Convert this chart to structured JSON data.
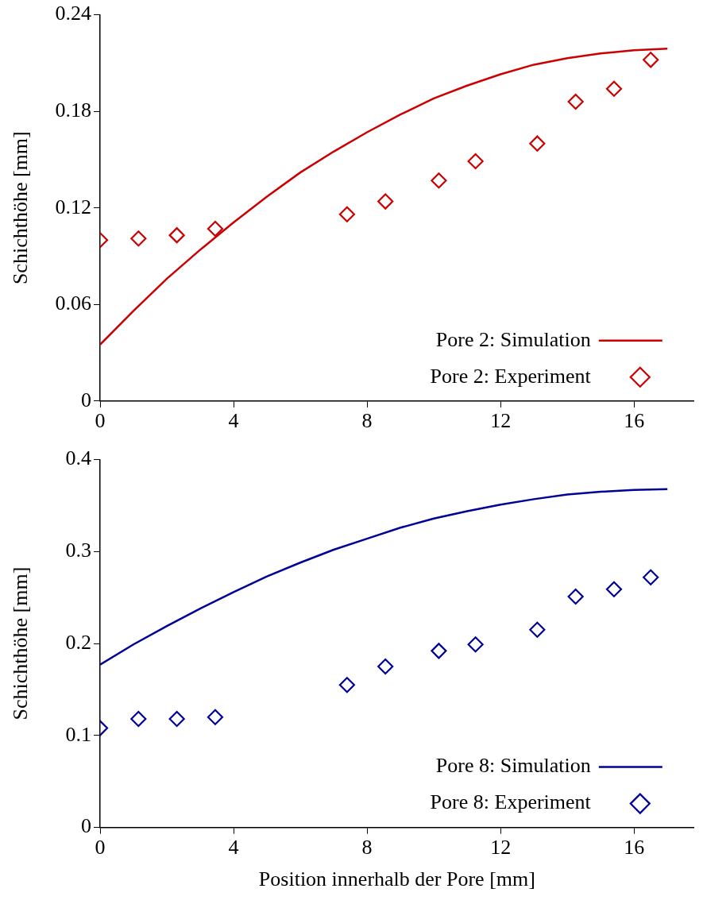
{
  "chart_data": [
    {
      "type": "line",
      "ylabel": "Schichthöhe [mm]",
      "xlim": [
        0,
        17.8
      ],
      "xticks": [
        0,
        4,
        8,
        12,
        16
      ],
      "ylim": [
        0,
        0.24
      ],
      "yticks": [
        0,
        0.06,
        0.12,
        0.18,
        0.24
      ],
      "grid": false,
      "legend": "bottom right",
      "series": [
        {
          "name": "Pore 2: Simulation",
          "color": "#cc0000",
          "line_style": "solid",
          "x": [
            0,
            1,
            2,
            3,
            4,
            5,
            6,
            7,
            8,
            9,
            10,
            11,
            12,
            13,
            14,
            15,
            16,
            17
          ],
          "values": [
            0.035,
            0.056,
            0.076,
            0.094,
            0.111,
            0.127,
            0.142,
            0.155,
            0.167,
            0.178,
            0.188,
            0.196,
            0.203,
            0.209,
            0.213,
            0.216,
            0.218,
            0.219
          ]
        },
        {
          "name": "Pore 2: Experiment",
          "type": "scatter",
          "color": "#cc0000",
          "marker": "diamond",
          "x": [
            0,
            1.15,
            2.3,
            3.45,
            7.4,
            8.55,
            10.15,
            11.25,
            13.1,
            14.25,
            15.4,
            16.5
          ],
          "values": [
            0.1,
            0.101,
            0.103,
            0.107,
            0.116,
            0.124,
            0.137,
            0.149,
            0.16,
            0.186,
            0.194,
            0.212
          ]
        }
      ]
    },
    {
      "type": "line",
      "xlabel": "Position innerhalb der Pore [mm]",
      "ylabel": "Schichthöhe [mm]",
      "xlim": [
        0,
        17.8
      ],
      "xticks": [
        0,
        4,
        8,
        12,
        16
      ],
      "ylim": [
        0,
        0.4
      ],
      "yticks": [
        0,
        0.1,
        0.2,
        0.3,
        0.4
      ],
      "grid": false,
      "legend": "bottom right",
      "series": [
        {
          "name": "Pore 8: Simulation",
          "color": "#000099",
          "line_style": "solid",
          "x": [
            0,
            1,
            2,
            3,
            4,
            5,
            6,
            7,
            8,
            9,
            10,
            11,
            12,
            13,
            14,
            15,
            16,
            17
          ],
          "values": [
            0.177,
            0.199,
            0.219,
            0.238,
            0.256,
            0.273,
            0.288,
            0.302,
            0.314,
            0.326,
            0.336,
            0.344,
            0.351,
            0.357,
            0.362,
            0.365,
            0.367,
            0.368
          ]
        },
        {
          "name": "Pore 8: Experiment",
          "type": "scatter",
          "color": "#000099",
          "marker": "diamond",
          "x": [
            0,
            1.15,
            2.3,
            3.45,
            7.4,
            8.55,
            10.15,
            11.25,
            13.1,
            14.25,
            15.4,
            16.5
          ],
          "values": [
            0.108,
            0.118,
            0.118,
            0.12,
            0.155,
            0.175,
            0.192,
            0.199,
            0.215,
            0.251,
            0.259,
            0.272
          ]
        }
      ]
    }
  ]
}
